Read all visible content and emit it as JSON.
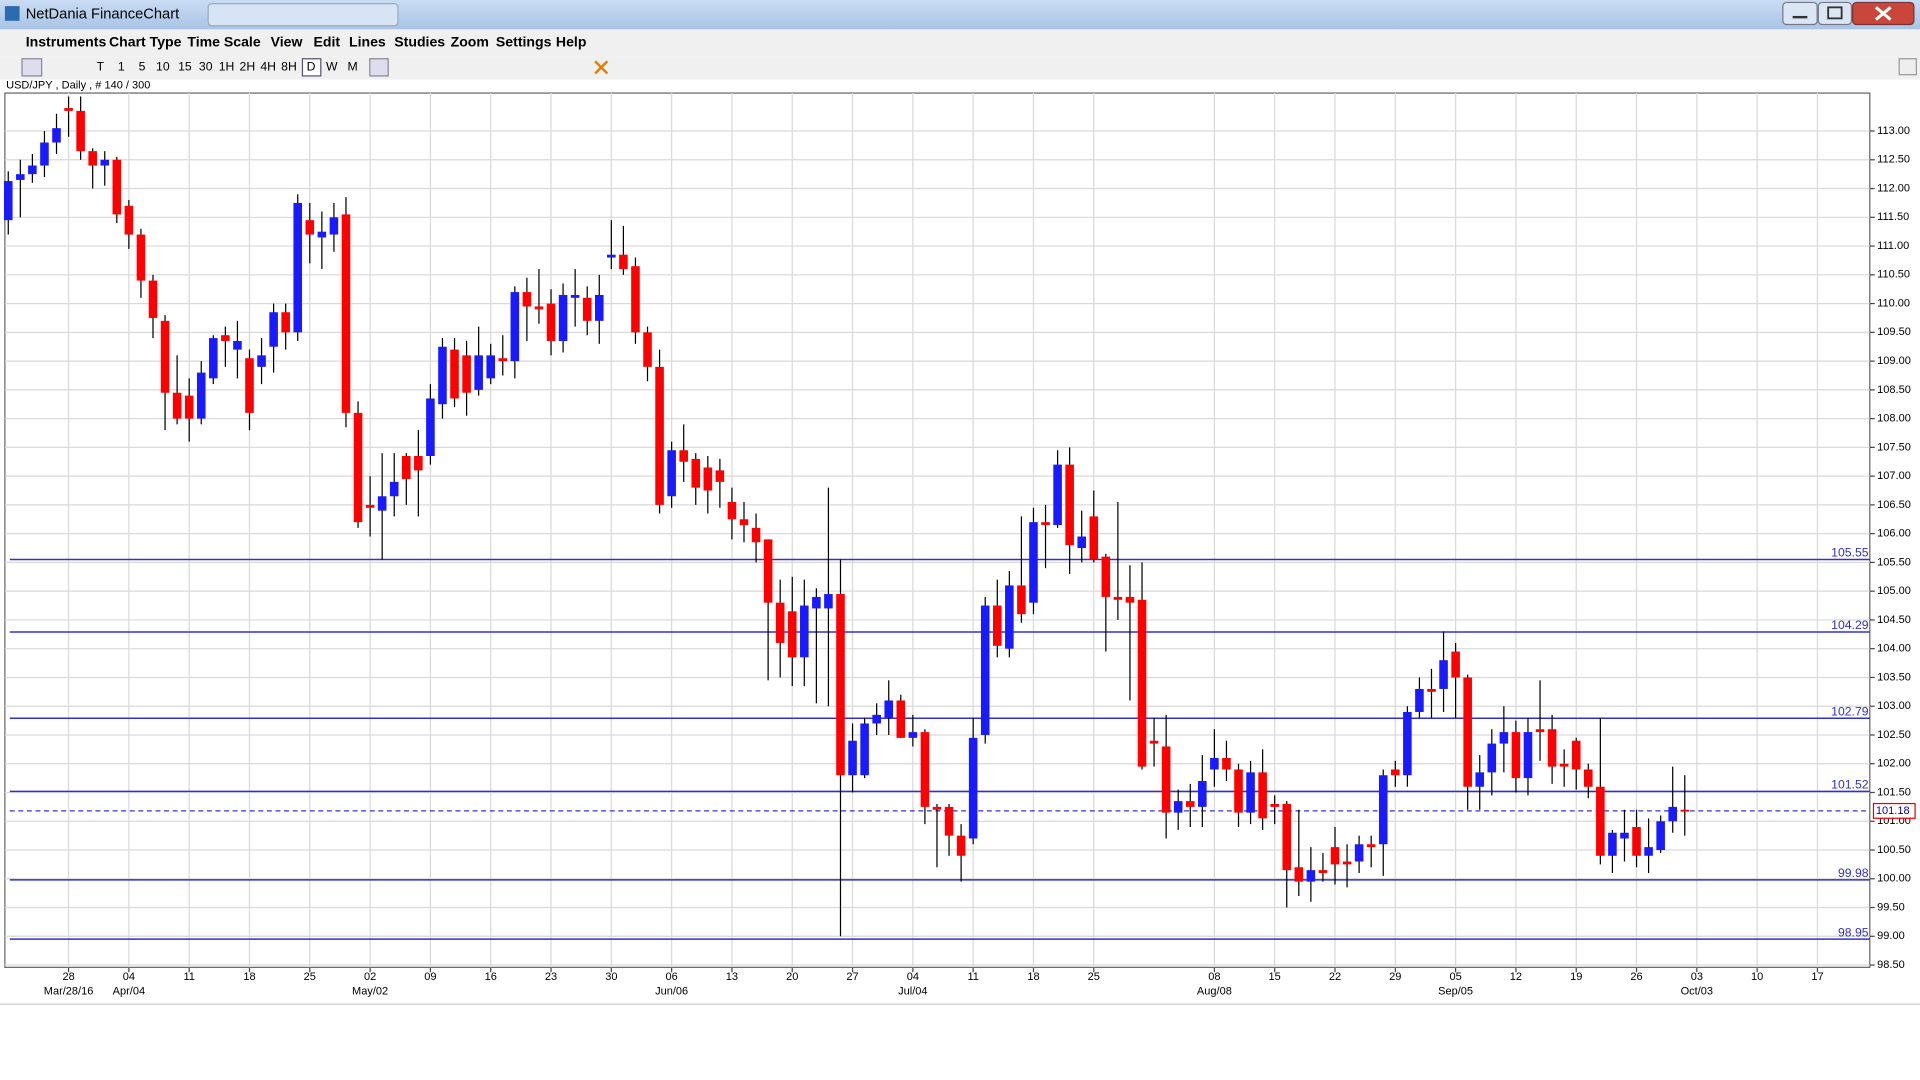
{
  "window": {
    "title": "NetDania FinanceChart"
  },
  "ui": {
    "menu": [
      "Instruments",
      "Chart Type",
      "Time Scale",
      "View",
      "Edit",
      "Lines",
      "Studies",
      "Zoom",
      "Settings",
      "Help"
    ],
    "toolbar": [
      "T",
      "1",
      "5",
      "10",
      "15",
      "30",
      "1H",
      "2H",
      "4H",
      "8H",
      "D",
      "W",
      "M"
    ]
  },
  "chart_data": {
    "type": "candlestick",
    "title": "USD/JPY , Daily , # 140 / 300",
    "up_color": "#1a1aff",
    "down_color": "#ff0000",
    "grid": true,
    "open": [
      111.45,
      112.15,
      112.25,
      112.4,
      112.8,
      113.4,
      113.35,
      112.65,
      112.4,
      112.5,
      111.7,
      111.2,
      110.4,
      109.7,
      108.45,
      108.4,
      108.0,
      108.7,
      109.45,
      109.2,
      109.05,
      108.9,
      109.25,
      109.85,
      109.5,
      111.45,
      111.15,
      111.2,
      111.55,
      108.1,
      106.5,
      106.4,
      106.65,
      107.35,
      107.35,
      107.35,
      108.25,
      109.2,
      109.1,
      108.5,
      108.7,
      109.05,
      109.0,
      110.2,
      109.95,
      110.0,
      109.35,
      110.1,
      110.1,
      109.7,
      110.8,
      110.85,
      110.65,
      109.5,
      108.9,
      106.65,
      107.45,
      107.3,
      107.15,
      107.1,
      106.55,
      106.25,
      106.1,
      105.9,
      104.8,
      104.65,
      103.85,
      104.7,
      104.7,
      104.95,
      101.8,
      101.8,
      102.7,
      102.8,
      103.1,
      102.45,
      102.55,
      101.25,
      101.25,
      100.75,
      100.7,
      102.5,
      104.75,
      104.0,
      105.1,
      104.8,
      106.2,
      106.15,
      107.2,
      105.75,
      106.3,
      105.6,
      104.9,
      104.9,
      104.85,
      102.4,
      102.3,
      101.15,
      101.35,
      101.25,
      101.9,
      102.1,
      101.9,
      101.15,
      101.85,
      101.3,
      101.3,
      100.2,
      99.95,
      100.15,
      100.55,
      100.3,
      100.3,
      100.6,
      100.6,
      101.9,
      101.8,
      102.9,
      103.3,
      103.3,
      103.95,
      103.5,
      101.6,
      101.85,
      102.35,
      102.55,
      101.75,
      102.6,
      102.6,
      102.0,
      102.4,
      101.9,
      101.6,
      100.4,
      100.7,
      100.9,
      100.4,
      100.5,
      101.0,
      101.2
    ],
    "high": [
      112.3,
      112.5,
      112.6,
      113.0,
      113.3,
      113.6,
      113.6,
      112.7,
      112.65,
      112.55,
      111.8,
      111.3,
      110.5,
      109.8,
      109.1,
      108.7,
      109.0,
      109.45,
      109.6,
      109.7,
      109.2,
      109.4,
      110.0,
      110.0,
      111.9,
      111.75,
      111.6,
      111.75,
      111.85,
      108.3,
      107.0,
      107.4,
      107.4,
      107.4,
      107.8,
      108.6,
      109.4,
      109.4,
      109.35,
      109.6,
      109.3,
      109.45,
      110.3,
      110.45,
      110.6,
      110.25,
      110.35,
      110.6,
      110.3,
      110.5,
      111.45,
      111.35,
      110.8,
      109.6,
      109.2,
      107.6,
      107.9,
      107.4,
      107.35,
      107.3,
      106.8,
      106.55,
      106.35,
      105.9,
      105.2,
      105.25,
      105.2,
      105.05,
      106.8,
      105.55,
      102.7,
      102.8,
      103.05,
      103.45,
      103.2,
      102.85,
      102.6,
      101.3,
      101.3,
      100.95,
      102.8,
      104.9,
      105.2,
      105.35,
      106.3,
      106.45,
      106.5,
      107.45,
      107.5,
      106.4,
      106.75,
      105.65,
      106.55,
      105.45,
      105.5,
      102.8,
      102.85,
      101.55,
      101.65,
      102.15,
      102.6,
      102.4,
      102.0,
      102.05,
      102.25,
      101.45,
      101.35,
      101.2,
      100.55,
      100.45,
      100.9,
      100.6,
      100.75,
      100.75,
      101.9,
      102.05,
      103.0,
      103.5,
      103.65,
      104.3,
      104.1,
      103.55,
      102.15,
      102.6,
      103.0,
      102.75,
      102.8,
      103.45,
      102.85,
      102.25,
      102.45,
      102.0,
      102.8,
      100.85,
      101.2,
      101.2,
      101.05,
      101.1,
      101.95,
      101.8
    ],
    "low": [
      111.2,
      111.5,
      112.1,
      112.2,
      112.6,
      112.9,
      112.5,
      112.0,
      112.05,
      111.4,
      110.95,
      110.1,
      109.4,
      107.8,
      107.9,
      107.6,
      107.9,
      108.6,
      108.9,
      108.7,
      107.8,
      108.6,
      108.8,
      109.2,
      109.35,
      110.7,
      110.6,
      110.9,
      107.85,
      106.1,
      105.95,
      105.55,
      106.3,
      106.5,
      106.3,
      107.2,
      108.0,
      108.2,
      108.05,
      108.4,
      108.6,
      108.75,
      108.7,
      109.35,
      109.65,
      109.1,
      109.15,
      109.6,
      109.45,
      109.3,
      110.6,
      110.5,
      109.3,
      108.65,
      106.35,
      106.45,
      106.9,
      106.5,
      106.35,
      106.45,
      105.9,
      105.85,
      105.5,
      103.45,
      103.5,
      103.35,
      103.35,
      103.05,
      103.0,
      99.0,
      101.5,
      101.75,
      102.5,
      102.5,
      102.45,
      102.3,
      100.95,
      100.2,
      100.4,
      99.95,
      100.6,
      102.35,
      103.85,
      103.85,
      104.45,
      104.6,
      105.4,
      106.1,
      105.3,
      105.5,
      105.5,
      103.95,
      104.5,
      103.1,
      101.9,
      101.95,
      100.7,
      100.85,
      100.9,
      100.9,
      101.6,
      101.7,
      100.9,
      100.95,
      100.85,
      100.95,
      99.5,
      99.7,
      99.6,
      99.95,
      99.9,
      99.85,
      100.1,
      100.2,
      100.05,
      101.6,
      101.6,
      102.8,
      102.8,
      102.9,
      102.8,
      101.2,
      101.2,
      101.45,
      101.85,
      101.5,
      101.45,
      102.05,
      101.65,
      101.6,
      101.55,
      101.4,
      100.25,
      100.1,
      100.3,
      100.2,
      100.1,
      100.45,
      100.8,
      100.75
    ],
    "close": [
      112.13,
      112.25,
      112.4,
      112.8,
      113.05,
      113.35,
      112.65,
      112.4,
      112.5,
      111.55,
      111.2,
      110.4,
      109.75,
      108.45,
      108.0,
      108.0,
      108.8,
      109.4,
      109.35,
      109.35,
      108.1,
      109.1,
      109.85,
      109.5,
      111.75,
      111.2,
      111.25,
      111.5,
      108.1,
      106.2,
      106.45,
      106.65,
      106.9,
      106.95,
      107.1,
      108.35,
      109.25,
      108.35,
      108.45,
      109.1,
      109.1,
      109.0,
      110.2,
      109.95,
      109.9,
      109.35,
      110.15,
      110.15,
      109.7,
      110.15,
      110.85,
      110.6,
      109.5,
      108.9,
      106.5,
      107.45,
      107.25,
      106.8,
      106.75,
      106.9,
      106.25,
      106.15,
      105.85,
      104.8,
      104.1,
      103.85,
      104.75,
      104.9,
      104.95,
      101.8,
      102.4,
      102.7,
      102.85,
      103.1,
      102.45,
      102.55,
      101.25,
      101.2,
      100.75,
      100.4,
      102.45,
      104.75,
      104.05,
      105.1,
      104.6,
      106.2,
      106.15,
      107.2,
      105.8,
      105.95,
      105.55,
      104.9,
      104.85,
      104.8,
      101.95,
      102.35,
      101.15,
      101.35,
      101.25,
      101.7,
      102.1,
      101.9,
      101.15,
      101.85,
      101.05,
      101.25,
      100.15,
      99.95,
      100.15,
      100.1,
      100.25,
      100.25,
      100.6,
      100.55,
      101.8,
      101.8,
      102.9,
      103.3,
      103.25,
      103.8,
      103.5,
      101.6,
      101.85,
      102.35,
      102.55,
      101.75,
      102.55,
      102.55,
      101.95,
      101.95,
      101.9,
      101.6,
      100.4,
      100.8,
      100.8,
      100.4,
      100.55,
      101.0,
      101.25,
      101.18
    ],
    "levels": [
      105.55,
      104.29,
      102.79,
      101.52,
      99.98,
      98.95
    ],
    "level_color": "#3030d0",
    "last": 101.18,
    "ylim": [
      98.46,
      113.66
    ],
    "yticks": [
      {
        "value": 113,
        "label": "113.00"
      },
      {
        "value": 112.5,
        "label": "112.50"
      },
      {
        "value": 112,
        "label": "112.00"
      },
      {
        "value": 111.5,
        "label": "111.50"
      },
      {
        "value": 111,
        "label": "111.00"
      },
      {
        "value": 110.5,
        "label": "110.50"
      },
      {
        "value": 110,
        "label": "110.00"
      },
      {
        "value": 109.5,
        "label": "109.50"
      },
      {
        "value": 109,
        "label": "109.00"
      },
      {
        "value": 108.5,
        "label": "108.50"
      },
      {
        "value": 108,
        "label": "108.00"
      },
      {
        "value": 107.5,
        "label": "107.50"
      },
      {
        "value": 107,
        "label": "107.00"
      },
      {
        "value": 106.5,
        "label": "106.50"
      },
      {
        "value": 106,
        "label": "106.00"
      },
      {
        "value": 105.5,
        "label": "105.50"
      },
      {
        "value": 105,
        "label": "105.00"
      },
      {
        "value": 104.5,
        "label": "104.50"
      },
      {
        "value": 104,
        "label": "104.00"
      },
      {
        "value": 103.5,
        "label": "103.50"
      },
      {
        "value": 103,
        "label": "103.00"
      },
      {
        "value": 102.5,
        "label": "102.50"
      },
      {
        "value": 102,
        "label": "102.00"
      },
      {
        "value": 101.5,
        "label": "101.50"
      },
      {
        "value": 101,
        "label": "101.00"
      },
      {
        "value": 100.5,
        "label": "100.50"
      },
      {
        "value": 100,
        "label": "100.00"
      },
      {
        "value": 99.5,
        "label": "99.50"
      },
      {
        "value": 99,
        "label": "99.00"
      },
      {
        "value": 98.5,
        "label": "98.50"
      }
    ],
    "xticks": [
      {
        "value": 5,
        "label": "28"
      },
      {
        "value": 10,
        "label": "04"
      },
      {
        "value": 15,
        "label": "11"
      },
      {
        "value": 20,
        "label": "18"
      },
      {
        "value": 25,
        "label": "25"
      },
      {
        "value": 30,
        "label": "02"
      },
      {
        "value": 35,
        "label": "09"
      },
      {
        "value": 40,
        "label": "16"
      },
      {
        "value": 45,
        "label": "23"
      },
      {
        "value": 50,
        "label": "30"
      },
      {
        "value": 55,
        "label": "06"
      },
      {
        "value": 60,
        "label": "13"
      },
      {
        "value": 65,
        "label": "20"
      },
      {
        "value": 70,
        "label": "27"
      },
      {
        "value": 75,
        "label": "04"
      },
      {
        "value": 80,
        "label": "11"
      },
      {
        "value": 85,
        "label": "18"
      },
      {
        "value": 90,
        "label": "25"
      },
      {
        "value": 100,
        "label": "08"
      },
      {
        "value": 105,
        "label": "15"
      },
      {
        "value": 110,
        "label": "22"
      },
      {
        "value": 115,
        "label": "29"
      },
      {
        "value": 120,
        "label": "05"
      },
      {
        "value": 125,
        "label": "12"
      },
      {
        "value": 130,
        "label": "19"
      },
      {
        "value": 135,
        "label": "26"
      },
      {
        "value": 140,
        "label": "03"
      },
      {
        "value": 145,
        "label": "10"
      },
      {
        "value": 150,
        "label": "17"
      }
    ],
    "xticks_months": [
      {
        "value": 5,
        "label": "Mar/28/16"
      },
      {
        "value": 10,
        "label": "Apr/04"
      },
      {
        "value": 30,
        "label": "May/02"
      },
      {
        "value": 55,
        "label": "Jun/06"
      },
      {
        "value": 75,
        "label": "Jul/04"
      },
      {
        "value": 100,
        "label": "Aug/08"
      },
      {
        "value": 120,
        "label": "Sep/05"
      },
      {
        "value": 140,
        "label": "Oct/03"
      }
    ]
  }
}
